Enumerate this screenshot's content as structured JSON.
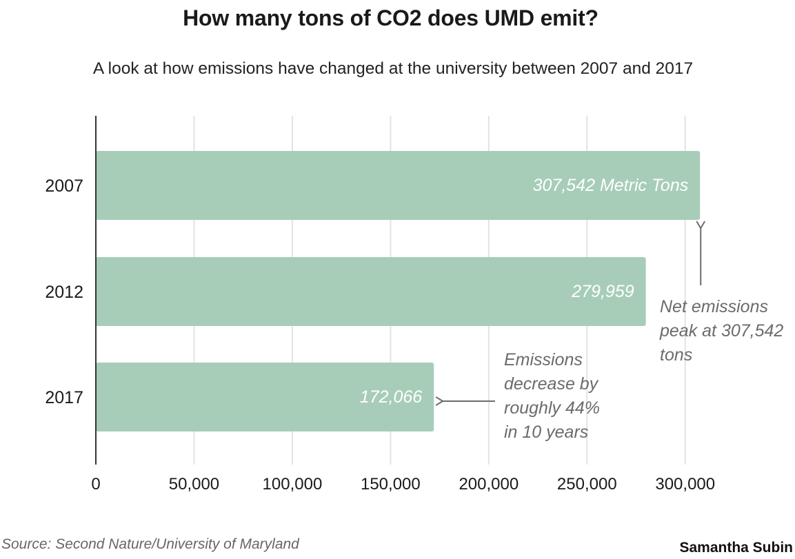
{
  "chart_data": {
    "type": "bar",
    "orientation": "horizontal",
    "title": "How many tons of CO2 does UMD emit?",
    "subtitle": "A look at how emissions have changed at the university between 2007 and 2017",
    "categories": [
      "2007",
      "2012",
      "2017"
    ],
    "values": [
      307542,
      279959,
      172066
    ],
    "data_labels": [
      "307,542 Metric Tons",
      "279,959",
      "172,066"
    ],
    "xlim": [
      0,
      305000
    ],
    "xticks": [
      0,
      50000,
      100000,
      150000,
      200000,
      250000,
      300000
    ],
    "xtick_labels": [
      "0",
      "50,000",
      "100,000",
      "150,000",
      "200,000",
      "250,000",
      "300,000"
    ],
    "grid": true,
    "bar_color": "#a7cdb9",
    "annotations": [
      {
        "name": "peak",
        "lines": [
          "Net emissions",
          "peak at 307,542",
          "tons"
        ],
        "points_to": "2007"
      },
      {
        "name": "decrease",
        "lines": [
          "Emissions",
          "decrease by",
          "roughly 44%",
          "in 10 years"
        ],
        "points_to": "2017"
      }
    ],
    "source": "Source: Second Nature/University of Maryland",
    "credit": "Samantha Subin"
  }
}
